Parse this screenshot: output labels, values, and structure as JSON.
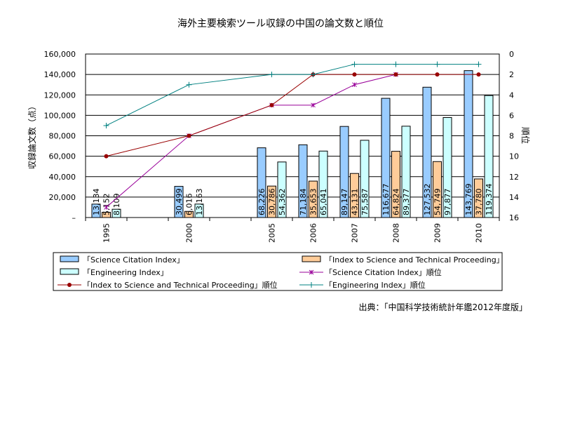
{
  "chart_data": {
    "type": "bar",
    "title": "海外主要検索ツール収録の中国の論文数と順位",
    "ylabel": "収録論文数（点）",
    "y2label": "順位",
    "ylim": [
      0,
      160000
    ],
    "y2lim": [
      0,
      16
    ],
    "y2_inverted": true,
    "yticks": [
      "–",
      "20,000",
      "40,000",
      "60,000",
      "80,000",
      "100,000",
      "120,000",
      "140,000",
      "160,000"
    ],
    "y2ticks": [
      "0",
      "2",
      "4",
      "6",
      "8",
      "10",
      "12",
      "14",
      "16"
    ],
    "categories": [
      "1995",
      "",
      "2000",
      "",
      "2005",
      "2006",
      "2007",
      "2008",
      "2009",
      "2010"
    ],
    "series": [
      {
        "name": "「Science Citation Index」",
        "type": "bar",
        "color": "#99ccff",
        "values": [
          13134,
          null,
          30499,
          null,
          68226,
          71184,
          89147,
          116677,
          127532,
          143769
        ],
        "labels": [
          "13,134",
          "",
          "30,499",
          "",
          "68,226",
          "71,184",
          "89,147",
          "116,677",
          "127,532",
          "143,769"
        ]
      },
      {
        "name": "「Index to Science and Technical Proceeding」",
        "type": "bar",
        "color": "#ffcc99",
        "values": [
          5152,
          null,
          6016,
          null,
          30786,
          35653,
          43131,
          64824,
          54749,
          37780
        ],
        "labels": [
          "5,152",
          "",
          "6,016",
          "",
          "30,786",
          "35,653",
          "43,131",
          "64,824",
          "54,749",
          "37,780"
        ]
      },
      {
        "name": "「Engineering Index」",
        "type": "bar",
        "color": "#ccffff",
        "values": [
          8109,
          null,
          13163,
          null,
          54362,
          65041,
          75587,
          89377,
          97877,
          119374
        ],
        "labels": [
          "8,109",
          "",
          "13,163",
          "",
          "54,362",
          "65,041",
          "75,587",
          "89,377",
          "97,877",
          "119,374"
        ]
      },
      {
        "name": "「Science Citation Index」順位",
        "type": "line",
        "axis": "right",
        "color": "#990099",
        "marker": "x",
        "values": [
          15,
          null,
          8,
          null,
          5,
          5,
          3,
          2,
          null,
          null
        ]
      },
      {
        "name": "「Index to Science and Technical Proceeding」順位",
        "type": "line",
        "axis": "right",
        "color": "#990000",
        "marker": "dot",
        "values": [
          10,
          null,
          8,
          null,
          5,
          2,
          2,
          2,
          2,
          2
        ]
      },
      {
        "name": "「Engineering Index」順位",
        "type": "line",
        "axis": "right",
        "color": "#008080",
        "marker": "plus",
        "values": [
          7,
          null,
          3,
          null,
          2,
          2,
          1,
          1,
          1,
          1
        ]
      }
    ],
    "legend_order": [
      0,
      1,
      2,
      3,
      4,
      5
    ],
    "legend_placement": "bottom",
    "grid": true,
    "source": "出典：「中国科学技術統計年鑑2012年度版」"
  }
}
